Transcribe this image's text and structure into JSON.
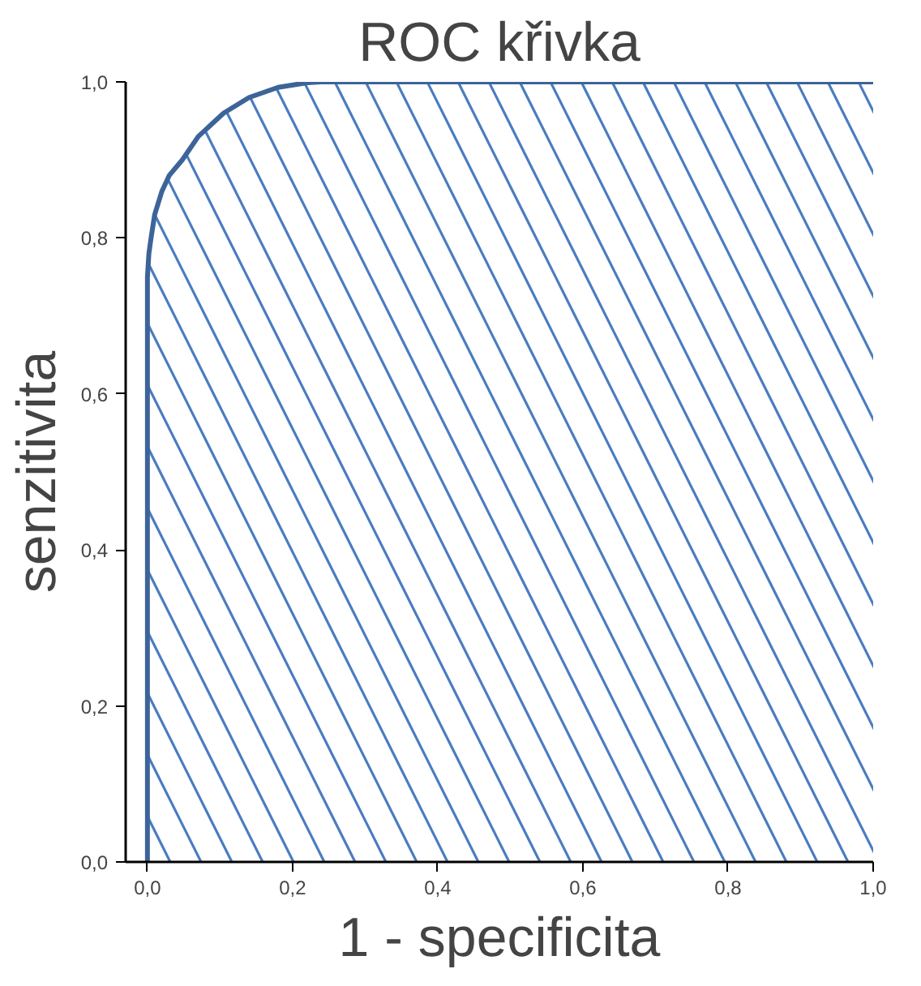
{
  "chart_data": {
    "type": "line",
    "title": "ROC křivka",
    "xlabel": "1 - specificita",
    "ylabel": "senzitivita",
    "series": [
      {
        "color": "#3d6499",
        "x": [
          0,
          0,
          0.002,
          0.005,
          0.01,
          0.02,
          0.03,
          0.048,
          0.07,
          0.105,
          0.14,
          0.18,
          0.22,
          0.24,
          1.0
        ],
        "values": [
          0,
          0.75,
          0.78,
          0.8,
          0.83,
          0.86,
          0.88,
          0.9,
          0.93,
          0.96,
          0.98,
          0.993,
          0.999,
          1.0,
          1.0
        ]
      }
    ],
    "xlim": [
      -0.03,
      1.0
    ],
    "ylim": [
      0,
      1.0
    ],
    "xticks": [
      {
        "value": 0,
        "label": "0,0"
      },
      {
        "value": 0.2,
        "label": "0,2"
      },
      {
        "value": 0.4,
        "label": "0,4"
      },
      {
        "value": 0.6,
        "label": "0,6"
      },
      {
        "value": 0.8,
        "label": "0,8"
      },
      {
        "value": 1.0,
        "label": "1,0"
      }
    ],
    "yticks": [
      {
        "value": 0,
        "label": "0,0"
      },
      {
        "value": 0.2,
        "label": "0,2"
      },
      {
        "value": 0.4,
        "label": "0,4"
      },
      {
        "value": 0.6,
        "label": "0,6"
      },
      {
        "value": 0.8,
        "label": "0,8"
      },
      {
        "value": 1.0,
        "label": "1,0"
      }
    ],
    "grid": false
  }
}
